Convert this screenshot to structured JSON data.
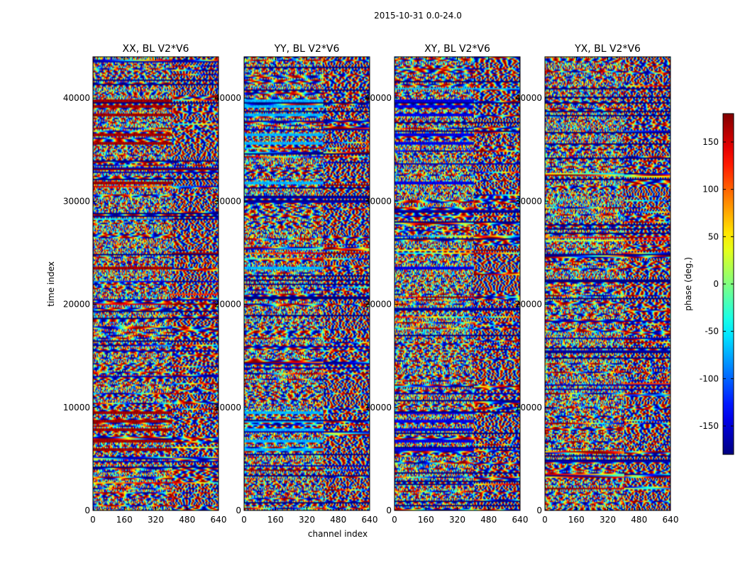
{
  "chart_data": {
    "type": "heatmap",
    "suptitle": "2015-10-31 0.0-24.0",
    "xlabel": "channel index",
    "ylabel": "time index",
    "xlim": [
      0,
      640
    ],
    "ylim": [
      0,
      44000
    ],
    "xticks": [
      0,
      160,
      320,
      480,
      640
    ],
    "yticks": [
      0,
      10000,
      20000,
      30000,
      40000
    ],
    "panels": [
      {
        "title": "XX, BL V2*V6",
        "polarization": "XX"
      },
      {
        "title": "YY, BL V2*V6",
        "polarization": "YY"
      },
      {
        "title": "XY, BL V2*V6",
        "polarization": "XY"
      },
      {
        "title": "YX, BL V2*V6",
        "polarization": "YX"
      }
    ],
    "colorbar": {
      "label": "phase (deg.)",
      "colormap": "jet",
      "range": [
        -180,
        180
      ],
      "ticks": [
        -150,
        -100,
        -50,
        0,
        50,
        100,
        150
      ]
    }
  }
}
